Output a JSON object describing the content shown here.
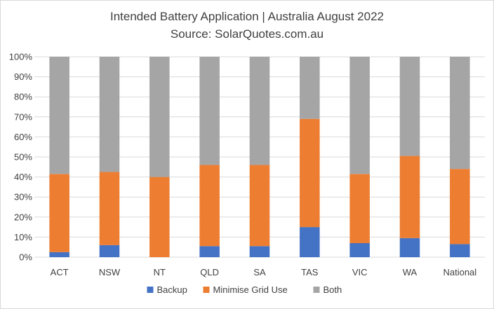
{
  "chart_data": {
    "type": "bar",
    "stacked": true,
    "percent": true,
    "title": "Intended Battery Application | Australia August 2022",
    "subtitle": "Source: SolarQuotes.com.au",
    "categories": [
      "ACT",
      "NSW",
      "NT",
      "QLD",
      "SA",
      "TAS",
      "VIC",
      "WA",
      "National"
    ],
    "ylim": [
      0,
      100
    ],
    "yticks": [
      "0%",
      "10%",
      "20%",
      "30%",
      "40%",
      "50%",
      "60%",
      "70%",
      "80%",
      "90%",
      "100%"
    ],
    "grid": true,
    "legend_position": "bottom",
    "series": [
      {
        "name": "Backup",
        "color": "#4472c4",
        "values": [
          2.5,
          6,
          0,
          5.5,
          5.5,
          15,
          7,
          9.5,
          6.5
        ]
      },
      {
        "name": "Minimise Grid Use",
        "color": "#ed7d31",
        "values": [
          39,
          36.5,
          40,
          40.5,
          40.5,
          54,
          34.5,
          41,
          37.5
        ]
      },
      {
        "name": "Both",
        "color": "#a5a5a5",
        "values": [
          58.5,
          57.5,
          60,
          54,
          54,
          31,
          58.5,
          49.5,
          56
        ]
      }
    ]
  }
}
